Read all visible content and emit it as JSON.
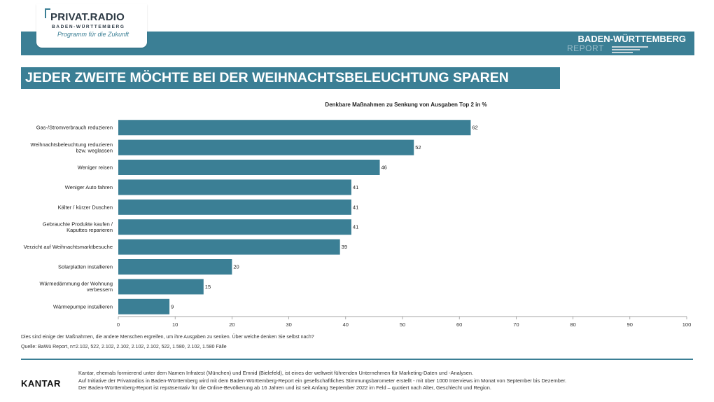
{
  "brand": {
    "logo_main": "PRIVAT.RADIO",
    "logo_sub": "BADEN-WÜRTTEMBERG",
    "logo_tag": "Programm für die Zukunft",
    "report_line1": "BADEN-WÜRTTEMBERG",
    "report_line2": "REPORT"
  },
  "headline": "JEDER ZWEITE MÖCHTE BEI DER WEIHNACHTSBELEUCHTUNG SPAREN",
  "colors": {
    "accent": "#3b7f95",
    "bar": "#3b7f95"
  },
  "chart_data": {
    "type": "bar",
    "orientation": "horizontal",
    "title": "Denkbare Maßnahmen zu Senkung von Ausgaben Top 2 in %",
    "categories": [
      "Gas-/Stromverbrauch reduzieren",
      "Weihnachtsbeleuchtung reduzieren bzw. weglassen",
      "Weniger reisen",
      "Weniger Auto fahren",
      "Kälter / kürzer Duschen",
      "Gebrauchte Produkte kaufen / Kaputtes reparieren",
      "Verzicht auf Weihnachtsmarktbesuche",
      "Solarplatten installieren",
      "Wärmedämmung der Wohnung verbessern",
      "Wärmepumpe installieren"
    ],
    "category_lines": [
      [
        "Gas-/Stromverbrauch reduzieren"
      ],
      [
        "Weihnachtsbeleuchtung reduzieren",
        "bzw. weglassen"
      ],
      [
        "Weniger reisen"
      ],
      [
        "Weniger Auto fahren"
      ],
      [
        "Kälter / kürzer Duschen"
      ],
      [
        "Gebrauchte Produkte kaufen /",
        "Kaputtes reparieren"
      ],
      [
        "Verzicht auf Weihnachtsmarktbesuche"
      ],
      [
        "Solarplatten installieren"
      ],
      [
        "Wärmedämmung der Wohnung",
        "verbessern"
      ],
      [
        "Wärmepumpe installieren"
      ]
    ],
    "values": [
      62,
      52,
      46,
      41,
      41,
      41,
      39,
      20,
      15,
      9
    ],
    "xlim": [
      0,
      100
    ],
    "xticks": [
      0,
      10,
      20,
      30,
      40,
      50,
      60,
      70,
      80,
      90,
      100
    ],
    "grid": false
  },
  "note": "Dies sind einige der Maßnahmen, die andere Menschen ergreifen, um ihre Ausgaben zu senken. Über welche denken Sie selbst nach?",
  "source": "Quelle: BaWü Report, n=2.102, 522, 2.102, 2.102, 2.102, 2.102, 522, 1.580, 2.102, 1.580 Fälle",
  "footer": {
    "kantar_logo": "KANTAR",
    "line1": "Kantar, ehemals formierend unter dem Namen Infratest (München) und Emnid (Bielefeld), ist eines der weltweit führenden Unternehmen für Marketing-Daten und -Analysen.",
    "line2": "Auf Initiative der Privatradios in Baden-Württemberg wird mit dem Baden-Württemberg-Report ein gesellschaftliches Stimmungsbarometer erstellt - mit über 1000 Interviews im Monat von September bis Dezember.",
    "line3": "Der Baden-Württemberg-Report ist repräsentativ für die Online-Bevölkerung ab 16 Jahren und ist seit Anfang September 2022 im Feld – quotiert nach Alter, Geschlecht und Region."
  }
}
